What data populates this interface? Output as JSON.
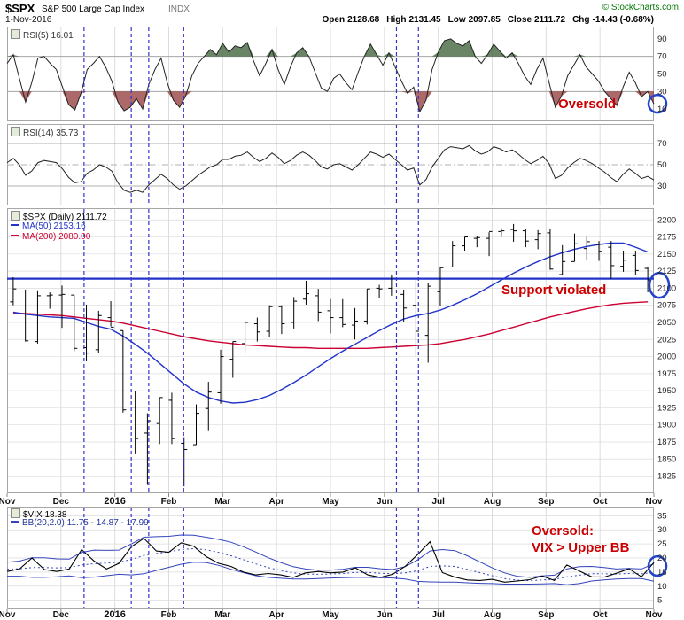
{
  "header": {
    "symbol": "$SPX",
    "name": "S&P 500 Large Cap Index",
    "exchange": "INDX",
    "copyright": "© StockCharts.com",
    "date": "1-Nov-2016",
    "quote": [
      {
        "label": "Open",
        "value": "2128.68"
      },
      {
        "label": "High",
        "value": "2131.45"
      },
      {
        "label": "Low",
        "value": "2097.85"
      },
      {
        "label": "Close",
        "value": "2111.72"
      },
      {
        "label": "Chg",
        "value": "-14.43 (-0.68%)"
      }
    ]
  },
  "annotations": {
    "rsi_oversold": "Oversold",
    "support": "Support violated",
    "vix_line1": "Oversold:",
    "vix_line2": "VIX > Upper BB"
  },
  "months": [
    "Nov",
    "Dec",
    "2016",
    "Feb",
    "Mar",
    "Apr",
    "May",
    "Jun",
    "Jul",
    "Aug",
    "Sep",
    "Oct",
    "Nov"
  ],
  "event_vlines": [
    0.119,
    0.192,
    0.219,
    0.273,
    0.602,
    0.636
  ],
  "colors": {
    "rsi_line": "#222222",
    "bar": "#000000",
    "ma50": "#2233cc",
    "ma200": "#cc0033",
    "band": "#3344bb",
    "support": "#2233cc",
    "vline": "#3333cc",
    "annotation_red": "#cc0000",
    "circle": "#2244cc",
    "copyright_green": "#007700",
    "overbought_fill": "#44663f",
    "oversold_fill": "#994444",
    "grid": "#dcdcdc",
    "grid_strong": "#999999"
  },
  "chart_data": [
    {
      "id": "rsi5",
      "type": "line",
      "title": "RSI(5) 16.01",
      "ylim": [
        0,
        100
      ],
      "yticks": [
        90,
        70,
        50,
        30,
        10
      ],
      "bands": {
        "overbought": 70,
        "oversold": 30
      },
      "circle_last": true,
      "values": [
        62,
        72,
        45,
        18,
        40,
        68,
        70,
        62,
        55,
        35,
        15,
        9,
        28,
        55,
        62,
        70,
        58,
        42,
        18,
        8,
        12,
        22,
        10,
        38,
        55,
        68,
        40,
        20,
        12,
        25,
        48,
        62,
        70,
        78,
        72,
        85,
        75,
        82,
        80,
        86,
        65,
        48,
        62,
        78,
        55,
        38,
        58,
        74,
        80,
        70,
        52,
        34,
        30,
        45,
        50,
        40,
        32,
        52,
        70,
        84,
        72,
        60,
        74,
        58,
        42,
        28,
        35,
        7,
        20,
        55,
        75,
        88,
        90,
        85,
        82,
        88,
        70,
        62,
        72,
        84,
        76,
        68,
        74,
        62,
        48,
        38,
        55,
        68,
        40,
        12,
        25,
        48,
        60,
        72,
        58,
        50,
        42,
        30,
        22,
        14,
        35,
        52,
        40,
        24,
        30,
        16
      ]
    },
    {
      "id": "rsi14",
      "type": "line",
      "title": "RSI(14) 35.73",
      "ylim": [
        15,
        85
      ],
      "yticks": [
        70,
        50,
        30
      ],
      "circle_last": false,
      "values": [
        52,
        56,
        50,
        40,
        44,
        52,
        54,
        53,
        52,
        46,
        38,
        33,
        34,
        42,
        45,
        50,
        48,
        44,
        33,
        26,
        24,
        26,
        24,
        31,
        36,
        41,
        37,
        31,
        27,
        30,
        35,
        40,
        44,
        48,
        50,
        55,
        55,
        58,
        59,
        62,
        57,
        53,
        56,
        61,
        57,
        51,
        54,
        59,
        62,
        59,
        54,
        48,
        46,
        50,
        51,
        48,
        45,
        50,
        56,
        62,
        60,
        57,
        60,
        55,
        50,
        45,
        47,
        31,
        36,
        48,
        56,
        64,
        67,
        66,
        65,
        68,
        63,
        60,
        62,
        67,
        65,
        62,
        64,
        60,
        55,
        51,
        54,
        58,
        51,
        37,
        40,
        47,
        52,
        56,
        54,
        51,
        47,
        43,
        38,
        34,
        41,
        46,
        42,
        37,
        39,
        35.7
      ]
    },
    {
      "id": "price",
      "type": "ohlc",
      "title": "$SPX (Daily) 2111.72",
      "ylim": [
        1805,
        2212
      ],
      "yticks": [
        2200,
        2175,
        2150,
        2125,
        2100,
        2075,
        2050,
        2025,
        2000,
        1975,
        1950,
        1925,
        1900,
        1875,
        1850,
        1825
      ],
      "support_level": 2114,
      "circle_last": true,
      "ohlc": [
        [
          2080,
          2116,
          2075,
          2099
        ],
        [
          2096,
          2098,
          2022,
          2023
        ],
        [
          2022,
          2097,
          2019,
          2089
        ],
        [
          2089,
          2094,
          2070,
          2090
        ],
        [
          2090,
          2104,
          2042,
          2091
        ],
        [
          2090,
          2090,
          2008,
          2012
        ],
        [
          2013,
          2076,
          1993,
          2005
        ],
        [
          2010,
          2067,
          2005,
          2060
        ],
        [
          2057,
          2081,
          2044,
          2043
        ],
        [
          2038,
          2038,
          1918,
          1922
        ],
        [
          1926,
          1950,
          1857,
          1880
        ],
        [
          1888,
          1917,
          1812,
          1906
        ],
        [
          1902,
          1940,
          1872,
          1940
        ],
        [
          1936,
          1947,
          1872,
          1880
        ],
        [
          1873,
          1882,
          1810,
          1864
        ],
        [
          1871,
          1930,
          1871,
          1917
        ],
        [
          1924,
          1963,
          1891,
          1948
        ],
        [
          1947,
          2010,
          1931,
          2000
        ],
        [
          1996,
          2022,
          1969,
          2022
        ],
        [
          2019,
          2052,
          2005,
          2050
        ],
        [
          2048,
          2057,
          2022,
          2036
        ],
        [
          2037,
          2075,
          2028,
          2073
        ],
        [
          2073,
          2075,
          2033,
          2048
        ],
        [
          2050,
          2087,
          2041,
          2081
        ],
        [
          2084,
          2111,
          2076,
          2092
        ],
        [
          2089,
          2099,
          2052,
          2065
        ],
        [
          2067,
          2084,
          2034,
          2057
        ],
        [
          2057,
          2084,
          2043,
          2047
        ],
        [
          2046,
          2071,
          2025,
          2052
        ],
        [
          2052,
          2099,
          2047,
          2099
        ],
        [
          2100,
          2105,
          2085,
          2099
        ],
        [
          2100,
          2120,
          2089,
          2096
        ],
        [
          2091,
          2098,
          2050,
          2071
        ],
        [
          2075,
          2113,
          2000,
          2037
        ],
        [
          2031,
          2108,
          1991,
          2103
        ],
        [
          2095,
          2131,
          2074,
          2130
        ],
        [
          2131,
          2169,
          2131,
          2162
        ],
        [
          2162,
          2175,
          2155,
          2175
        ],
        [
          2173,
          2177,
          2160,
          2174
        ],
        [
          2173,
          2182,
          2147,
          2183
        ],
        [
          2183,
          2188,
          2175,
          2184
        ],
        [
          2186,
          2194,
          2168,
          2184
        ],
        [
          2184,
          2187,
          2160,
          2169
        ],
        [
          2171,
          2185,
          2157,
          2180
        ],
        [
          2181,
          2187,
          2127,
          2128
        ],
        [
          2120,
          2163,
          2119,
          2139
        ],
        [
          2139,
          2180,
          2139,
          2165
        ],
        [
          2158,
          2175,
          2141,
          2168
        ],
        [
          2164,
          2169,
          2140,
          2154
        ],
        [
          2160,
          2169,
          2114,
          2133
        ],
        [
          2132,
          2155,
          2124,
          2141
        ],
        [
          2148,
          2155,
          2119,
          2126
        ],
        [
          2129,
          2131,
          2094,
          2112
        ]
      ],
      "series": [
        {
          "name": "MA(50) 2153.16",
          "color_key": "ma50",
          "values": [
            2065,
            2062,
            2060,
            2058,
            2057,
            2056,
            2050,
            2044,
            2040,
            2030,
            2018,
            2005,
            1990,
            1975,
            1960,
            1948,
            1940,
            1935,
            1932,
            1933,
            1937,
            1943,
            1952,
            1962,
            1973,
            1985,
            1997,
            2008,
            2018,
            2028,
            2038,
            2047,
            2055,
            2060,
            2063,
            2068,
            2075,
            2083,
            2092,
            2102,
            2112,
            2122,
            2131,
            2139,
            2146,
            2152,
            2157,
            2161,
            2164,
            2166,
            2166,
            2160,
            2153
          ]
        },
        {
          "name": "MA(200) 2080.00",
          "color_key": "ma200",
          "values": [
            2064,
            2063,
            2062,
            2061,
            2060,
            2058,
            2056,
            2054,
            2052,
            2049,
            2045,
            2041,
            2037,
            2033,
            2029,
            2026,
            2023,
            2021,
            2019,
            2017,
            2016,
            2015,
            2014,
            2013,
            2013,
            2012,
            2012,
            2012,
            2012,
            2012,
            2013,
            2014,
            2015,
            2016,
            2017,
            2019,
            2022,
            2025,
            2029,
            2033,
            2038,
            2043,
            2048,
            2053,
            2058,
            2062,
            2066,
            2070,
            2073,
            2076,
            2078,
            2079,
            2080
          ]
        }
      ]
    },
    {
      "id": "vix",
      "type": "line",
      "title": "$VIX 18.38",
      "subtitle": "BB(20,2.0) 11.75 - 14.87 - 17.99",
      "ylim": [
        3,
        37
      ],
      "yticks": [
        35,
        30,
        25,
        20,
        15,
        10,
        5
      ],
      "circle_last": true,
      "values": [
        15.2,
        16.1,
        20.0,
        15.9,
        15.2,
        16.1,
        23.0,
        18.9,
        16.1,
        18.1,
        24.0,
        27.0,
        22.5,
        22.0,
        25.4,
        24.2,
        20.5,
        18.1,
        17.0,
        15.0,
        14.0,
        14.5,
        14.0,
        13.1,
        14.7,
        15.2,
        14.7,
        15.0,
        16.5,
        14.0,
        13.1,
        14.2,
        17.0,
        21.2,
        25.8,
        14.8,
        13.2,
        12.2,
        12.0,
        12.4,
        11.4,
        11.8,
        12.3,
        13.6,
        12.0,
        17.5,
        15.4,
        13.3,
        13.2,
        14.6,
        16.2,
        13.3,
        18.4
      ],
      "bb_upper": [
        18.5,
        18.9,
        20.1,
        20.1,
        19.7,
        19.6,
        22.0,
        22.8,
        22.7,
        22.8,
        25.0,
        27.4,
        27.6,
        27.7,
        28.2,
        28.1,
        27.4,
        26.6,
        25.6,
        24.0,
        22.1,
        20.1,
        18.4,
        16.9,
        16.1,
        15.7,
        15.7,
        16.0,
        16.7,
        16.7,
        16.2,
        15.9,
        16.9,
        19.3,
        22.5,
        23.0,
        22.6,
        20.8,
        18.6,
        16.5,
        14.7,
        13.5,
        13.1,
        13.6,
        13.9,
        16.1,
        16.9,
        17.0,
        16.6,
        16.1,
        16.3,
        16.1,
        17.99
      ],
      "bb_middle": [
        16.0,
        16.2,
        16.6,
        16.6,
        16.5,
        16.6,
        17.5,
        18.0,
        18.2,
        18.5,
        19.5,
        20.9,
        21.6,
        22.2,
        23.0,
        23.3,
        22.9,
        22.0,
        20.8,
        19.4,
        17.9,
        16.6,
        15.6,
        14.7,
        14.3,
        14.2,
        14.3,
        14.5,
        14.9,
        14.9,
        14.6,
        14.4,
        14.7,
        15.5,
        17.0,
        17.2,
        17.0,
        16.0,
        14.8,
        13.7,
        12.7,
        12.1,
        11.9,
        12.2,
        12.4,
        13.3,
        13.9,
        14.4,
        14.4,
        14.3,
        14.5,
        14.4,
        14.87
      ],
      "bb_lower": [
        13.5,
        13.5,
        13.1,
        13.1,
        13.3,
        13.6,
        13.0,
        13.2,
        13.7,
        14.2,
        14.0,
        14.4,
        15.6,
        16.7,
        17.8,
        18.5,
        18.4,
        17.4,
        16.0,
        14.8,
        13.7,
        13.1,
        12.8,
        12.5,
        12.5,
        12.7,
        12.9,
        13.0,
        13.1,
        13.1,
        13.0,
        12.9,
        12.5,
        11.7,
        11.5,
        11.4,
        11.4,
        11.2,
        11.0,
        10.9,
        10.7,
        10.7,
        10.7,
        10.8,
        10.9,
        10.5,
        10.9,
        11.8,
        12.2,
        12.5,
        12.7,
        12.7,
        11.75
      ]
    }
  ]
}
